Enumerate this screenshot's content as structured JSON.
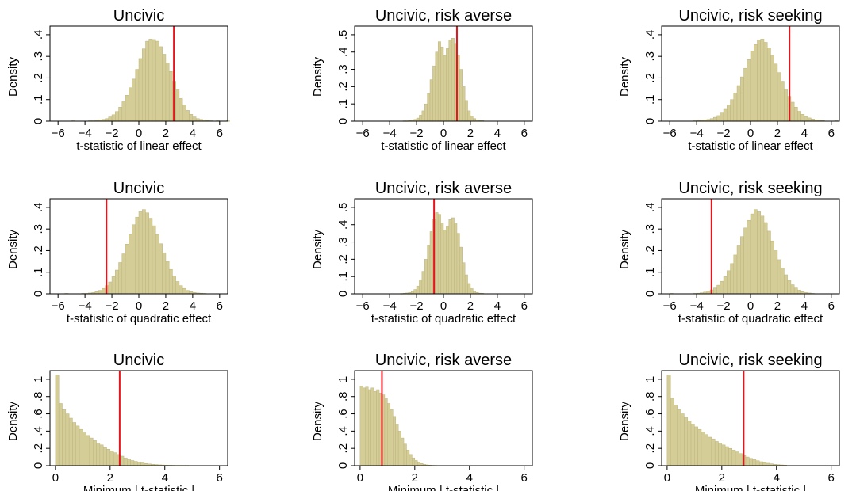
{
  "figure": {
    "ylabel": "Density",
    "bar_color": "#d4cd98",
    "bar_edge_color": "#bdb57c",
    "cutoff_color": "#e8141c"
  },
  "chart_data": [
    {
      "type": "bar",
      "title": "Uncivic",
      "xlabel": "t-statistic of linear effect",
      "ylabel": "Density",
      "xlim": [
        -6.6,
        6.6
      ],
      "ylim": [
        0,
        0.44
      ],
      "xticks": [
        -6,
        -4,
        -2,
        0,
        2,
        4,
        6
      ],
      "yticks": [
        0,
        0.1,
        0.2,
        0.3,
        0.4
      ],
      "ytick_labels": [
        "0",
        ".1",
        ".2",
        ".3",
        ".4"
      ],
      "bin_start": -5.0,
      "bin_width": 0.25,
      "values": [
        0.002,
        0,
        0,
        0,
        0,
        0.002,
        0.002,
        0.004,
        0.006,
        0.008,
        0.012,
        0.02,
        0.03,
        0.045,
        0.065,
        0.09,
        0.12,
        0.155,
        0.195,
        0.24,
        0.29,
        0.335,
        0.37,
        0.38,
        0.378,
        0.37,
        0.345,
        0.31,
        0.27,
        0.23,
        0.185,
        0.145,
        0.105,
        0.075,
        0.05,
        0.032,
        0.02,
        0.012,
        0.008,
        0.005,
        0.003,
        0.002,
        0,
        0.002,
        0,
        0,
        0.002
      ],
      "cutoff": 2.6
    },
    {
      "type": "bar",
      "title": "Uncivic, risk averse",
      "xlabel": "t-statistic of linear effect",
      "ylabel": "Density",
      "xlim": [
        -6.6,
        6.6
      ],
      "ylim": [
        0,
        0.55
      ],
      "xticks": [
        -6,
        -4,
        -2,
        0,
        2,
        4,
        6
      ],
      "yticks": [
        0,
        0.1,
        0.2,
        0.3,
        0.4,
        0.5
      ],
      "ytick_labels": [
        "0",
        ".1",
        ".2",
        ".3",
        ".4",
        ".5"
      ],
      "bin_start": -3.0,
      "bin_width": 0.2,
      "values": [
        0.002,
        0.002,
        0.004,
        0.006,
        0.01,
        0.018,
        0.035,
        0.06,
        0.1,
        0.16,
        0.24,
        0.32,
        0.4,
        0.46,
        0.43,
        0.38,
        0.42,
        0.47,
        0.48,
        0.45,
        0.38,
        0.3,
        0.2,
        0.12,
        0.06,
        0.03,
        0.015,
        0.008,
        0.004,
        0.003
      ],
      "cutoff": 1.0
    },
    {
      "type": "bar",
      "title": "Uncivic, risk seeking",
      "xlabel": "t-statistic of linear effect",
      "ylabel": "Density",
      "xlim": [
        -6.6,
        6.6
      ],
      "ylim": [
        0,
        0.44
      ],
      "xticks": [
        -6,
        -4,
        -2,
        0,
        2,
        4,
        6
      ],
      "yticks": [
        0,
        0.1,
        0.2,
        0.3,
        0.4
      ],
      "ytick_labels": [
        "0",
        ".1",
        ".2",
        ".3",
        ".4"
      ],
      "bin_start": -4.25,
      "bin_width": 0.25,
      "values": [
        0.002,
        0.003,
        0.004,
        0.006,
        0.008,
        0.012,
        0.018,
        0.026,
        0.038,
        0.055,
        0.075,
        0.1,
        0.13,
        0.165,
        0.205,
        0.245,
        0.285,
        0.325,
        0.355,
        0.375,
        0.38,
        0.365,
        0.34,
        0.305,
        0.265,
        0.225,
        0.185,
        0.148,
        0.115,
        0.088,
        0.065,
        0.046,
        0.032,
        0.022,
        0.015,
        0.01,
        0.006,
        0.004,
        0.003,
        0,
        0,
        0,
        0.002
      ],
      "cutoff": 2.9
    },
    {
      "type": "bar",
      "title": "Uncivic",
      "xlabel": "t-statistic of quadratic effect",
      "ylabel": "Density",
      "xlim": [
        -6.6,
        6.6
      ],
      "ylim": [
        0,
        0.44
      ],
      "xticks": [
        -6,
        -4,
        -2,
        0,
        2,
        4,
        6
      ],
      "yticks": [
        0,
        0.1,
        0.2,
        0.3,
        0.4
      ],
      "ytick_labels": [
        "0",
        ".1",
        ".2",
        ".3",
        ".4"
      ],
      "bin_start": -5.5,
      "bin_width": 0.25,
      "values": [
        0.002,
        0,
        0,
        0,
        0,
        0.002,
        0.002,
        0.004,
        0.006,
        0.01,
        0.016,
        0.025,
        0.038,
        0.055,
        0.08,
        0.11,
        0.145,
        0.185,
        0.23,
        0.275,
        0.32,
        0.355,
        0.38,
        0.39,
        0.375,
        0.35,
        0.315,
        0.275,
        0.232,
        0.19,
        0.15,
        0.113,
        0.082,
        0.057,
        0.038,
        0.025,
        0.016,
        0.01,
        0.006,
        0.004,
        0.003,
        0.002
      ],
      "cutoff": -2.4
    },
    {
      "type": "bar",
      "title": "Uncivic, risk averse",
      "xlabel": "t-statistic of quadratic effect",
      "ylabel": "Density",
      "xlim": [
        -6.6,
        6.6
      ],
      "ylim": [
        0,
        0.55
      ],
      "xticks": [
        -6,
        -4,
        -2,
        0,
        2,
        4,
        6
      ],
      "yticks": [
        0,
        0.1,
        0.2,
        0.3,
        0.4,
        0.5
      ],
      "ytick_labels": [
        "0",
        ".1",
        ".2",
        ".3",
        ".4",
        ".5"
      ],
      "bin_start": -3.2,
      "bin_width": 0.2,
      "values": [
        0.002,
        0.003,
        0.005,
        0.008,
        0.014,
        0.025,
        0.045,
        0.08,
        0.13,
        0.2,
        0.28,
        0.36,
        0.43,
        0.47,
        0.46,
        0.41,
        0.37,
        0.39,
        0.43,
        0.44,
        0.41,
        0.35,
        0.27,
        0.18,
        0.11,
        0.06,
        0.03,
        0.015,
        0.008,
        0.004,
        0.003
      ],
      "cutoff": -0.7
    },
    {
      "type": "bar",
      "title": "Uncivic, risk seeking",
      "xlabel": "t-statistic of quadratic effect",
      "ylabel": "Density",
      "xlim": [
        -6.6,
        6.6
      ],
      "ylim": [
        0,
        0.44
      ],
      "xticks": [
        -6,
        -4,
        -2,
        0,
        2,
        4,
        6
      ],
      "yticks": [
        0,
        0.1,
        0.2,
        0.3,
        0.4
      ],
      "ytick_labels": [
        "0",
        ".1",
        ".2",
        ".3",
        ".4"
      ],
      "bin_start": -6.0,
      "bin_width": 0.25,
      "values": [
        0.002,
        0,
        0,
        0,
        0,
        0,
        0,
        0.002,
        0.003,
        0.005,
        0.008,
        0.012,
        0.018,
        0.027,
        0.04,
        0.058,
        0.08,
        0.107,
        0.14,
        0.18,
        0.222,
        0.265,
        0.305,
        0.34,
        0.37,
        0.39,
        0.38,
        0.36,
        0.33,
        0.29,
        0.245,
        0.2,
        0.158,
        0.12,
        0.088,
        0.062,
        0.042,
        0.027,
        0.017,
        0.01,
        0.006,
        0.004,
        0.002
      ],
      "cutoff": -2.9
    },
    {
      "type": "bar",
      "title": "Uncivic",
      "xlabel": "Minimum | t-statistic |",
      "ylabel": "Density",
      "xlim": [
        -0.2,
        6.3
      ],
      "ylim": [
        0,
        1.1
      ],
      "xticks": [
        0,
        2,
        4,
        6
      ],
      "yticks": [
        0,
        0.2,
        0.4,
        0.6,
        0.8,
        1.0
      ],
      "ytick_labels": [
        "0",
        ".2",
        ".4",
        ".6",
        ".8",
        "1"
      ],
      "bin_start": 0.0,
      "bin_width": 0.125,
      "values": [
        1.05,
        0.72,
        0.65,
        0.6,
        0.55,
        0.5,
        0.46,
        0.42,
        0.38,
        0.35,
        0.32,
        0.29,
        0.26,
        0.24,
        0.21,
        0.19,
        0.17,
        0.15,
        0.13,
        0.11,
        0.09,
        0.075,
        0.06,
        0.05,
        0.04,
        0.032,
        0.025,
        0.02,
        0.016,
        0.013,
        0.01,
        0.008,
        0.006,
        0.005,
        0.004,
        0.003,
        0.003,
        0.003,
        0.003
      ],
      "cutoff": 2.35
    },
    {
      "type": "bar",
      "title": "Uncivic, risk averse",
      "xlabel": "Minimum | t-statistic |",
      "ylabel": "Density",
      "xlim": [
        -0.2,
        6.3
      ],
      "ylim": [
        0,
        1.1
      ],
      "xticks": [
        0,
        2,
        4,
        6
      ],
      "yticks": [
        0,
        0.2,
        0.4,
        0.6,
        0.8,
        1.0
      ],
      "ytick_labels": [
        "0",
        ".2",
        ".4",
        ".6",
        ".8",
        "1"
      ],
      "bin_start": 0.0,
      "bin_width": 0.1,
      "values": [
        0.92,
        0.9,
        0.91,
        0.88,
        0.9,
        0.86,
        0.88,
        0.84,
        0.82,
        0.78,
        0.72,
        0.65,
        0.57,
        0.48,
        0.4,
        0.32,
        0.25,
        0.18,
        0.13,
        0.09,
        0.06,
        0.04,
        0.025,
        0.015,
        0.01,
        0.006,
        0.004,
        0.003
      ],
      "cutoff": 0.8
    },
    {
      "type": "bar",
      "title": "Uncivic, risk seeking",
      "xlabel": "Minimum | t-statistic |",
      "ylabel": "Density",
      "xlim": [
        -0.2,
        6.3
      ],
      "ylim": [
        0,
        1.1
      ],
      "xticks": [
        0,
        2,
        4,
        6
      ],
      "yticks": [
        0,
        0.2,
        0.4,
        0.6,
        0.8,
        1.0
      ],
      "ytick_labels": [
        "0",
        ".2",
        ".4",
        ".6",
        ".8",
        "1"
      ],
      "bin_start": 0.0,
      "bin_width": 0.125,
      "values": [
        1.05,
        0.78,
        0.7,
        0.65,
        0.6,
        0.56,
        0.52,
        0.48,
        0.45,
        0.42,
        0.39,
        0.36,
        0.33,
        0.31,
        0.28,
        0.26,
        0.24,
        0.22,
        0.2,
        0.18,
        0.16,
        0.14,
        0.12,
        0.1,
        0.085,
        0.07,
        0.058,
        0.046,
        0.036,
        0.028,
        0.022,
        0.016,
        0.012,
        0.009,
        0.006
      ],
      "cutoff": 2.8
    }
  ]
}
